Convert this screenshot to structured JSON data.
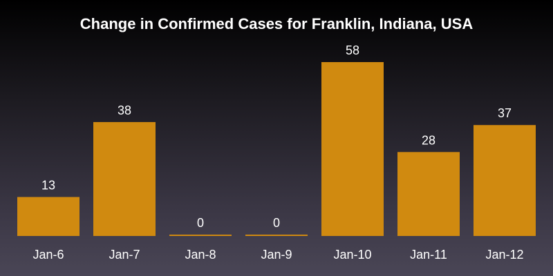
{
  "chart_data": {
    "type": "bar",
    "title": "Change in Confirmed Cases for Franklin, Indiana, USA",
    "categories": [
      "Jan-6",
      "Jan-7",
      "Jan-8",
      "Jan-9",
      "Jan-10",
      "Jan-11",
      "Jan-12"
    ],
    "values": [
      13,
      38,
      0,
      0,
      58,
      28,
      37
    ],
    "xlabel": "",
    "ylabel": "",
    "ylim": [
      0,
      58
    ],
    "grid": false,
    "bar_color": "#d08a10",
    "data_labels": true
  }
}
